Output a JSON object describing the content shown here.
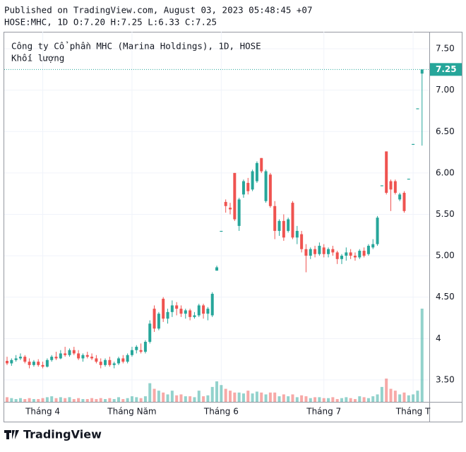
{
  "published": "Published on TradingView.com, August 03, 2023 05:48:45 +07",
  "symbol_line": "HOSE:MHC, 1D O:7.20 H:7.25 L:6.33 C:7.25",
  "logo": "TradingView",
  "chart_data": {
    "type": "candlestick",
    "title": "Công ty Cổ phần MHC (Marina Holdings), 1D, HOSE",
    "volume_label": "Khối lượng",
    "up_color": "#26a69a",
    "down_color": "#ef5350",
    "ylim": [
      3.235,
      7.705
    ],
    "yticks": [
      {
        "value": 3.5,
        "label": "3.50"
      },
      4,
      {
        "value": 4.5,
        "label": "4.50"
      },
      {
        "value": 5,
        "label": "5.00"
      },
      {
        "value": 5.5,
        "label": "5.50"
      },
      {
        "value": 6,
        "label": "6.00"
      },
      {
        "value": 6.5,
        "label": "6.50"
      },
      {
        "value": 7,
        "label": "7.00"
      },
      {
        "value": 7.5,
        "label": "7.50"
      }
    ],
    "xticks": [
      {
        "value": 8,
        "label": "Tháng 4"
      },
      {
        "value": 28,
        "label": "Tháng Năm"
      },
      {
        "value": 48,
        "label": "Tháng 6"
      },
      {
        "value": 71,
        "label": "Tháng 7"
      },
      {
        "value": 91,
        "label": "Tháng T"
      }
    ],
    "ohlc": [
      [
        3.73,
        3.78,
        3.68,
        3.7
      ],
      [
        3.7,
        3.76,
        3.67,
        3.74
      ],
      [
        3.74,
        3.8,
        3.72,
        3.76
      ],
      [
        3.76,
        3.82,
        3.74,
        3.78
      ],
      [
        3.78,
        3.8,
        3.7,
        3.72
      ],
      [
        3.72,
        3.76,
        3.64,
        3.68
      ],
      [
        3.68,
        3.74,
        3.66,
        3.72
      ],
      [
        3.72,
        3.75,
        3.66,
        3.68
      ],
      [
        3.68,
        3.72,
        3.64,
        3.66
      ],
      [
        3.66,
        3.76,
        3.65,
        3.74
      ],
      [
        3.74,
        3.8,
        3.72,
        3.78
      ],
      [
        3.78,
        3.84,
        3.74,
        3.76
      ],
      [
        3.76,
        3.86,
        3.75,
        3.82
      ],
      [
        3.82,
        3.9,
        3.78,
        3.8
      ],
      [
        3.8,
        3.88,
        3.78,
        3.86
      ],
      [
        3.86,
        3.9,
        3.8,
        3.82
      ],
      [
        3.82,
        3.86,
        3.74,
        3.76
      ],
      [
        3.76,
        3.82,
        3.72,
        3.8
      ],
      [
        3.8,
        3.84,
        3.76,
        3.78
      ],
      [
        3.78,
        3.82,
        3.74,
        3.76
      ],
      [
        3.76,
        3.8,
        3.7,
        3.72
      ],
      [
        3.72,
        3.76,
        3.64,
        3.68
      ],
      [
        3.68,
        3.76,
        3.66,
        3.74
      ],
      [
        3.74,
        3.78,
        3.66,
        3.68
      ],
      [
        3.68,
        3.72,
        3.64,
        3.7
      ],
      [
        3.7,
        3.78,
        3.68,
        3.76
      ],
      [
        3.76,
        3.8,
        3.7,
        3.72
      ],
      [
        3.72,
        3.82,
        3.7,
        3.8
      ],
      [
        3.8,
        3.9,
        3.78,
        3.86
      ],
      [
        3.86,
        3.92,
        3.82,
        3.9
      ],
      [
        3.86,
        3.94,
        3.82,
        3.84
      ],
      [
        3.84,
        3.98,
        3.82,
        3.96
      ],
      [
        3.96,
        4.22,
        3.94,
        4.18
      ],
      [
        4.36,
        4.4,
        4.08,
        4.12
      ],
      [
        4.12,
        4.32,
        4.1,
        4.3
      ],
      [
        4.48,
        4.5,
        4.2,
        4.24
      ],
      [
        4.24,
        4.36,
        4.18,
        4.32
      ],
      [
        4.32,
        4.46,
        4.26,
        4.4
      ],
      [
        4.4,
        4.44,
        4.28,
        4.36
      ],
      [
        4.36,
        4.4,
        4.26,
        4.3
      ],
      [
        4.3,
        4.36,
        4.24,
        4.34
      ],
      [
        4.34,
        4.36,
        4.22,
        4.26
      ],
      [
        4.26,
        4.32,
        4.24,
        4.28
      ],
      [
        4.28,
        4.42,
        4.26,
        4.4
      ],
      [
        4.4,
        4.42,
        4.24,
        4.3
      ],
      [
        4.3,
        4.38,
        4.22,
        4.36
      ],
      [
        4.28,
        4.56,
        4.26,
        4.54
      ],
      [
        4.82,
        4.88,
        4.82,
        4.86
      ],
      [
        5.3,
        5.3,
        5.3,
        5.3
      ],
      [
        5.65,
        5.68,
        5.52,
        5.6
      ],
      [
        5.58,
        5.64,
        5.5,
        5.56
      ],
      [
        6.0,
        6.0,
        5.42,
        5.44
      ],
      [
        5.36,
        5.7,
        5.3,
        5.68
      ],
      [
        5.74,
        5.92,
        5.7,
        5.9
      ],
      [
        5.88,
        5.94,
        5.74,
        5.78
      ],
      [
        5.8,
        6.04,
        5.78,
        6.02
      ],
      [
        5.9,
        6.14,
        5.88,
        6.12
      ],
      [
        6.18,
        6.18,
        6.0,
        6.02
      ],
      [
        5.66,
        6.04,
        5.64,
        6.02
      ],
      [
        5.98,
        6.0,
        5.58,
        5.6
      ],
      [
        5.6,
        5.66,
        5.2,
        5.3
      ],
      [
        5.3,
        5.44,
        5.24,
        5.42
      ],
      [
        5.42,
        5.5,
        5.18,
        5.22
      ],
      [
        5.3,
        5.46,
        5.28,
        5.44
      ],
      [
        5.64,
        5.66,
        5.2,
        5.22
      ],
      [
        5.22,
        5.36,
        5.14,
        5.3
      ],
      [
        5.26,
        5.3,
        5.04,
        5.08
      ],
      [
        5.08,
        5.14,
        4.8,
        5.0
      ],
      [
        5.0,
        5.1,
        4.96,
        5.08
      ],
      [
        5.08,
        5.12,
        4.98,
        5.02
      ],
      [
        5.02,
        5.16,
        5.0,
        5.12
      ],
      [
        5.1,
        5.14,
        4.98,
        5.02
      ],
      [
        5.02,
        5.1,
        4.98,
        5.08
      ],
      [
        5.08,
        5.12,
        5.0,
        5.04
      ],
      [
        5.04,
        5.06,
        4.9,
        4.96
      ],
      [
        4.96,
        5.02,
        4.9,
        5.0
      ],
      [
        5.0,
        5.1,
        4.94,
        5.04
      ],
      [
        5.04,
        5.08,
        4.96,
        5.0
      ],
      [
        5.0,
        5.04,
        4.94,
        4.98
      ],
      [
        4.98,
        5.08,
        4.96,
        5.06
      ],
      [
        5.06,
        5.1,
        4.98,
        5.0
      ],
      [
        5.02,
        5.14,
        5.0,
        5.12
      ],
      [
        5.1,
        5.2,
        5.08,
        5.14
      ],
      [
        5.14,
        5.48,
        5.12,
        5.46
      ],
      [
        5.85,
        5.85,
        5.85,
        5.85
      ],
      [
        6.26,
        6.26,
        5.74,
        5.76
      ],
      [
        5.9,
        5.92,
        5.54,
        5.8
      ],
      [
        5.9,
        5.92,
        5.74,
        5.76
      ],
      [
        5.68,
        5.76,
        5.66,
        5.74
      ],
      [
        5.76,
        5.78,
        5.52,
        5.54
      ],
      [
        5.93,
        5.93,
        5.93,
        5.93
      ],
      [
        6.35,
        6.35,
        6.35,
        6.35
      ],
      [
        6.78,
        6.78,
        6.78,
        6.78
      ],
      [
        7.2,
        7.25,
        6.33,
        7.25
      ]
    ],
    "volume": [
      5,
      4,
      3,
      4,
      3,
      4,
      3,
      3,
      4,
      5,
      6,
      4,
      5,
      4,
      5,
      3,
      4,
      3,
      3,
      4,
      3,
      4,
      3,
      4,
      3,
      5,
      3,
      4,
      6,
      5,
      4,
      6,
      20,
      14,
      12,
      10,
      8,
      12,
      7,
      8,
      6,
      6,
      5,
      12,
      6,
      7,
      16,
      22,
      18,
      14,
      12,
      10,
      10,
      9,
      12,
      9,
      11,
      10,
      8,
      10,
      10,
      6,
      8,
      6,
      8,
      5,
      7,
      6,
      4,
      5,
      5,
      4,
      4,
      5,
      3,
      4,
      5,
      4,
      3,
      6,
      5,
      4,
      6,
      8,
      16,
      25,
      14,
      12,
      8,
      10,
      7,
      8,
      12,
      100
    ]
  }
}
